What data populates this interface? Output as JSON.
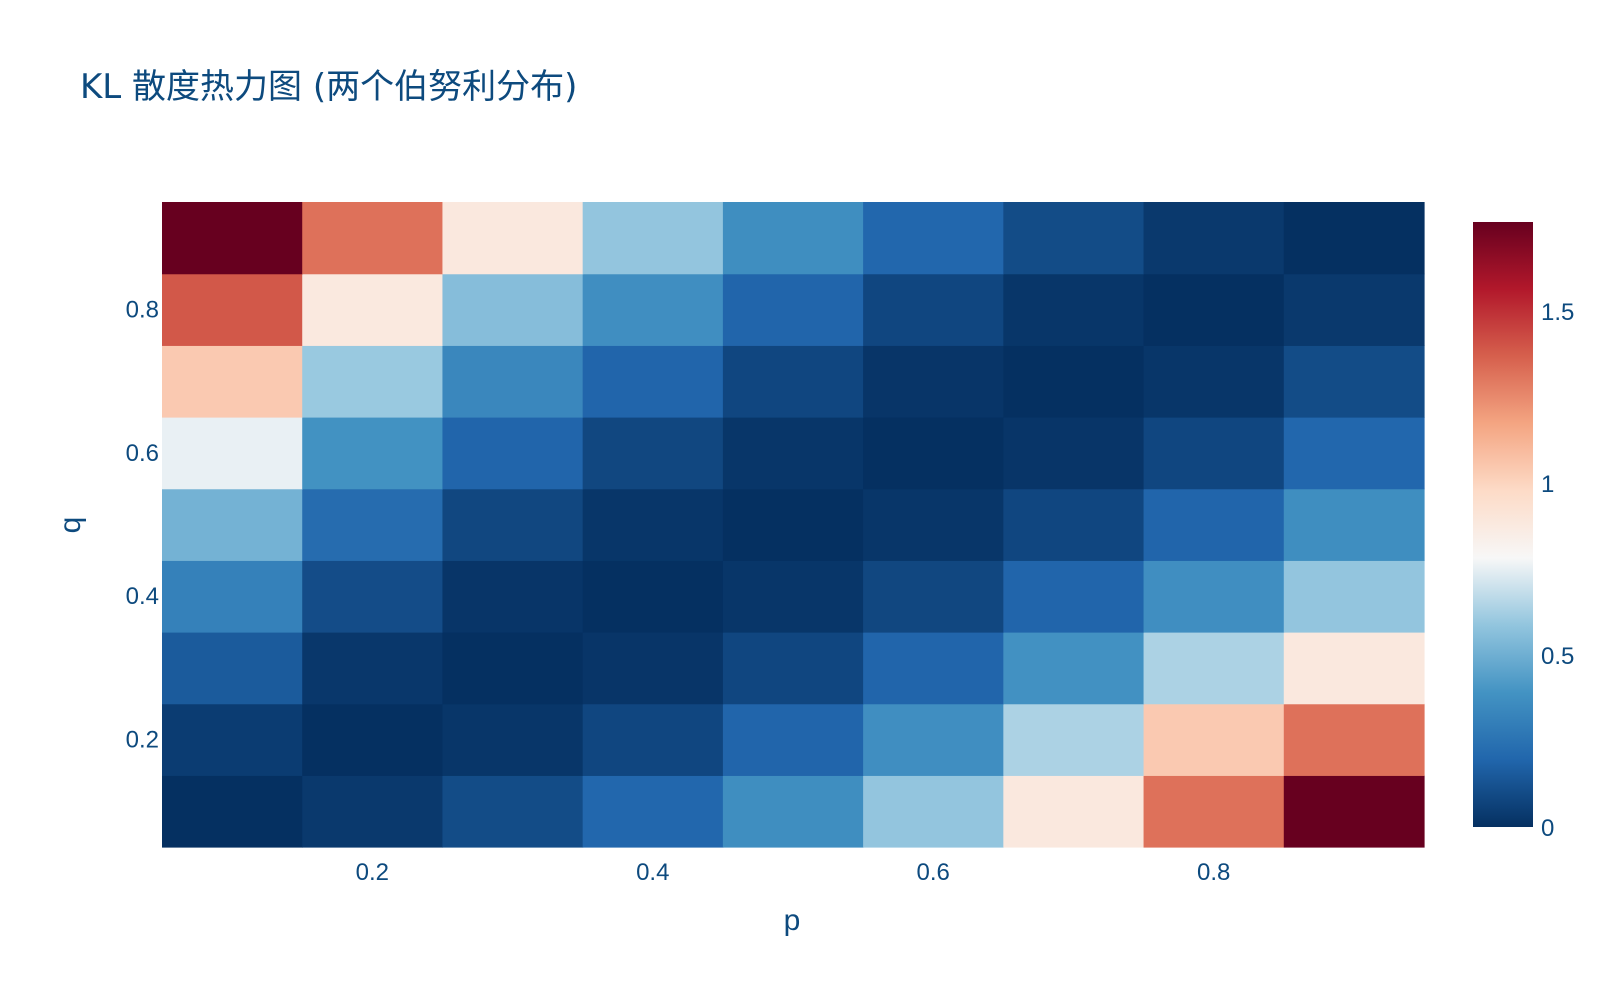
{
  "chart_data": {
    "type": "heatmap",
    "title": "KL 散度热力图 (两个伯努利分布)",
    "xlabel": "p",
    "ylabel": "q",
    "x": [
      0.1,
      0.2,
      0.3,
      0.4,
      0.5,
      0.6,
      0.7,
      0.8,
      0.9
    ],
    "y": [
      0.1,
      0.2,
      0.3,
      0.4,
      0.5,
      0.6,
      0.7,
      0.8,
      0.9
    ],
    "xlim": [
      0.05,
      0.95
    ],
    "ylim": [
      0.05,
      0.95
    ],
    "x_ticks": [
      {
        "value": 0.2,
        "label": "0.2"
      },
      {
        "value": 0.4,
        "label": "0.4"
      },
      {
        "value": 0.6,
        "label": "0.6"
      },
      {
        "value": 0.8,
        "label": "0.8"
      }
    ],
    "y_ticks": [
      {
        "value": 0.2,
        "label": "0.2"
      },
      {
        "value": 0.4,
        "label": "0.4"
      },
      {
        "value": 0.6,
        "label": "0.6"
      },
      {
        "value": 0.8,
        "label": "0.8"
      }
    ],
    "z": [
      [
        0.0,
        0.032,
        0.1,
        0.2,
        0.368,
        0.587,
        0.884,
        1.318,
        1.758
      ],
      [
        0.044,
        0.0,
        0.02,
        0.08,
        0.193,
        0.371,
        0.636,
        1.04,
        1.318
      ],
      [
        0.154,
        0.026,
        0.0,
        0.018,
        0.08,
        0.192,
        0.383,
        0.636,
        0.884
      ],
      [
        0.311,
        0.102,
        0.018,
        0.0,
        0.02,
        0.082,
        0.192,
        0.371,
        0.587
      ],
      [
        0.511,
        0.223,
        0.082,
        0.02,
        0.0,
        0.02,
        0.08,
        0.193,
        0.368
      ],
      [
        0.755,
        0.386,
        0.192,
        0.082,
        0.02,
        0.0,
        0.018,
        0.08,
        0.2
      ],
      [
        1.04,
        0.6,
        0.338,
        0.192,
        0.08,
        0.018,
        0.0,
        0.02,
        0.1
      ],
      [
        1.39,
        0.878,
        0.556,
        0.371,
        0.193,
        0.08,
        0.02,
        0.0,
        0.032
      ],
      [
        1.758,
        1.318,
        0.884,
        0.587,
        0.368,
        0.2,
        0.1,
        0.032,
        0.0
      ]
    ],
    "zlim": [
      0,
      1.758
    ],
    "colorscale": "RdBu_r",
    "colorscale_stops": [
      "#053061",
      "#2166ac",
      "#4393c3",
      "#92c5de",
      "#f7f7f7",
      "#fddbc7",
      "#f4a582",
      "#d6604d",
      "#b2182b",
      "#67001f"
    ],
    "colorbar_ticks": [
      {
        "value": 0,
        "label": "0"
      },
      {
        "value": 0.5,
        "label": "0.5"
      },
      {
        "value": 1,
        "label": "1"
      },
      {
        "value": 1.5,
        "label": "1.5"
      }
    ],
    "grid": false,
    "legend": "colorbar-right"
  }
}
